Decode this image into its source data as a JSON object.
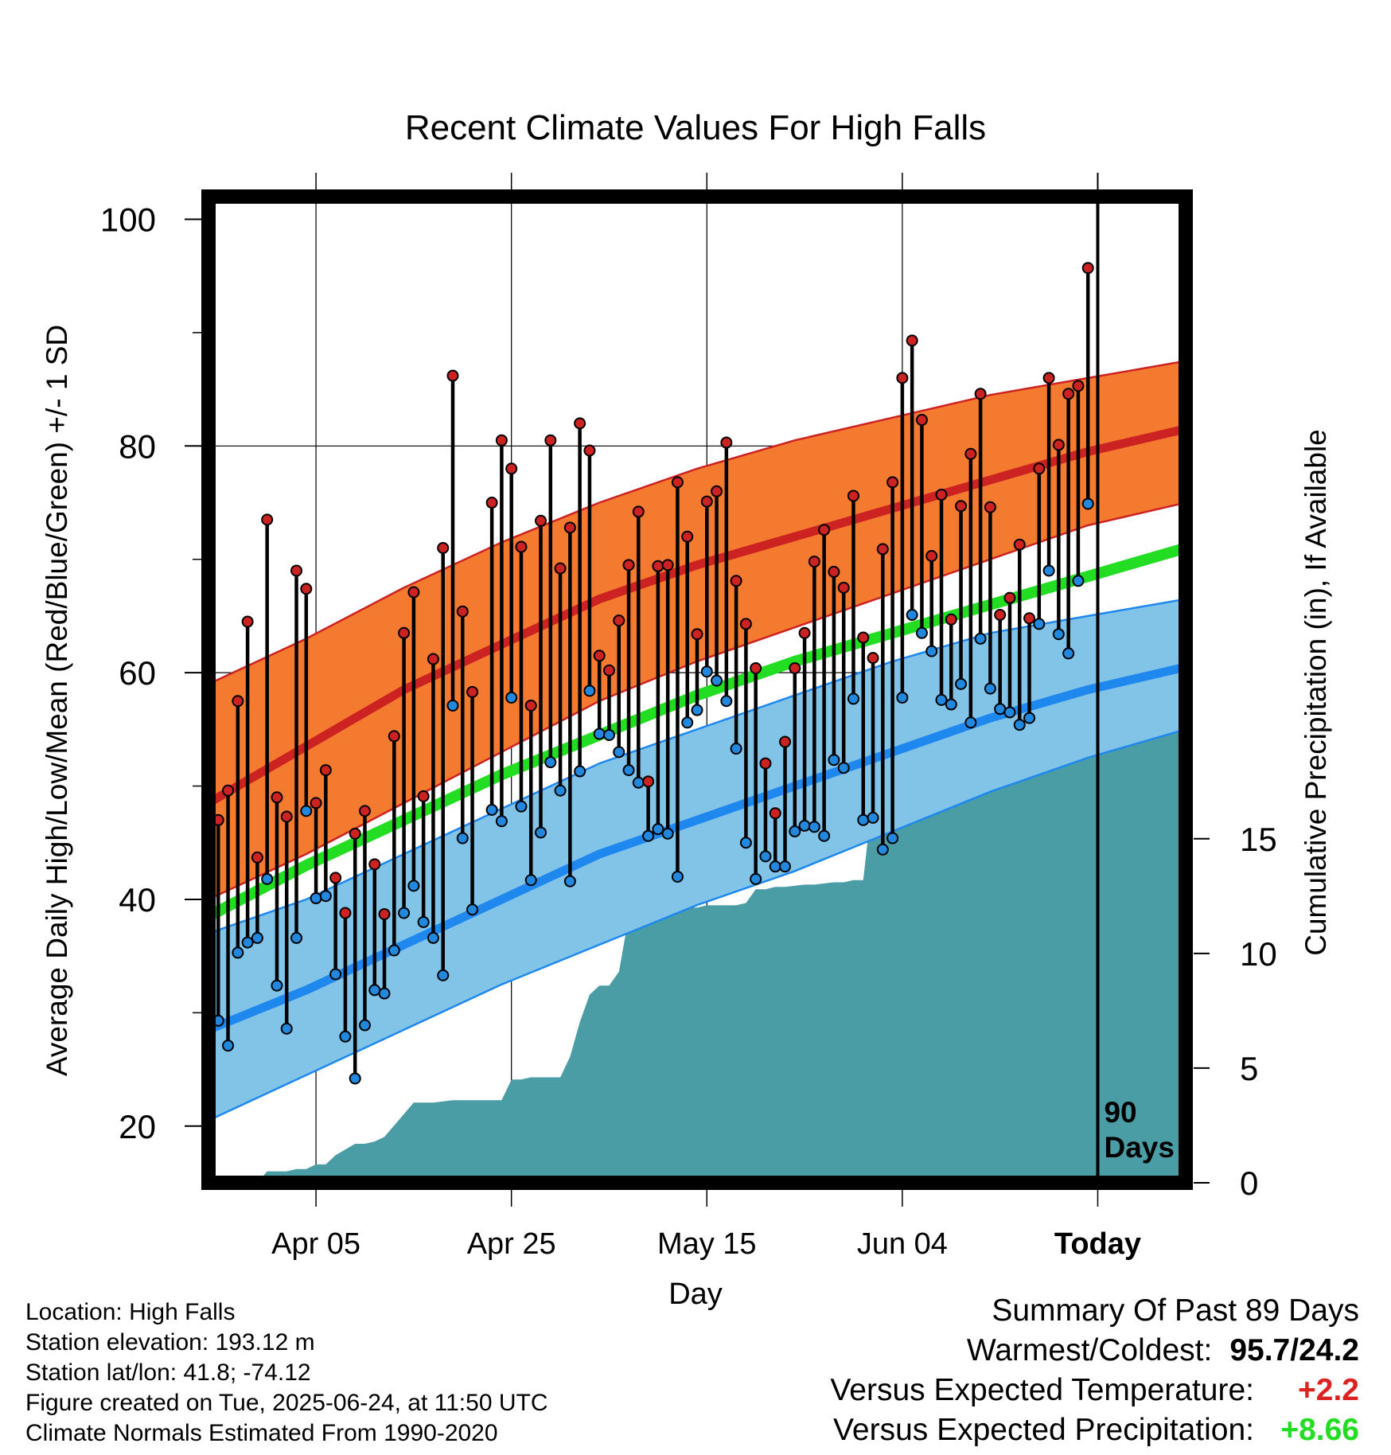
{
  "chart_data": {
    "type": "line",
    "title": "Recent Climate Values For High Falls",
    "xlabel": "Day",
    "ylabel": "Average Daily High/Low/Mean (Red/Blue/Green) +/- 1 SD",
    "y2label": "Cumulative Precipitation (in), If Available",
    "ylim": [
      15,
      102
    ],
    "y2lim": [
      0,
      43
    ],
    "y_ticks": [
      "20",
      "40",
      "60",
      "80",
      "100"
    ],
    "y2_ticks": [
      "0",
      "5",
      "10",
      "15"
    ],
    "x_tick_labels": [
      "Apr 05",
      "Apr 25",
      "May 15",
      "Jun 04",
      "Today"
    ],
    "x_tick_days": [
      10,
      30,
      50,
      70,
      90
    ],
    "xlim": [
      -1,
      99
    ],
    "today_marker": "90\nDays",
    "grid": true,
    "colors": {
      "high": "#cc2222",
      "high_band": "#f47a30",
      "low": "#1e88ee",
      "low_band": "#82c3e8",
      "mean": "#22dd22",
      "precip": "#4a9ca5",
      "high_dot": "#cc2222",
      "low_dot": "#2288dd"
    },
    "normals": {
      "days": [
        -1,
        9,
        19,
        29,
        39,
        49,
        59,
        69,
        79,
        89,
        99
      ],
      "high_mean": [
        48.5,
        53.5,
        58.5,
        62.5,
        66.5,
        69.5,
        72.0,
        74.5,
        77.0,
        79.5,
        81.5
      ],
      "high_sd_upper": [
        59.0,
        63.0,
        67.5,
        71.5,
        75.0,
        78.0,
        80.5,
        82.5,
        84.5,
        86.0,
        87.5
      ],
      "high_sd_lower": [
        40.0,
        44.0,
        48.5,
        53.0,
        57.5,
        61.0,
        64.0,
        67.0,
        70.0,
        73.0,
        75.0
      ],
      "mean": [
        38.5,
        43.0,
        47.0,
        51.0,
        54.5,
        58.0,
        61.0,
        63.5,
        66.0,
        68.5,
        71.0
      ],
      "low_mean": [
        28.5,
        32.0,
        36.0,
        40.0,
        44.0,
        47.0,
        50.0,
        53.0,
        56.0,
        58.5,
        60.5
      ],
      "low_sd_upper": [
        37.0,
        40.0,
        44.0,
        48.0,
        52.0,
        55.0,
        58.0,
        61.0,
        63.5,
        65.0,
        66.5
      ],
      "low_sd_lower": [
        20.5,
        24.5,
        28.5,
        32.5,
        36.0,
        39.5,
        42.5,
        46.0,
        49.5,
        52.5,
        55.0
      ]
    },
    "daily_high": [
      47.0,
      49.6,
      57.5,
      64.5,
      43.7,
      73.5,
      49.0,
      47.3,
      69.0,
      67.4,
      48.5,
      51.4,
      41.9,
      38.8,
      45.8,
      47.8,
      43.1,
      38.7,
      54.4,
      63.5,
      67.1,
      49.1,
      61.2,
      71.0,
      86.2,
      65.4,
      58.3,
      0,
      75.0,
      80.5,
      78.0,
      71.1,
      57.1,
      73.4,
      80.5,
      69.2,
      72.8,
      82.0,
      79.6,
      61.5,
      60.2,
      64.6,
      69.5,
      74.2,
      50.4,
      69.4,
      69.5,
      76.8,
      72.0,
      63.4,
      75.1,
      76.0,
      80.3,
      68.1,
      64.3,
      60.4,
      52.0,
      47.6,
      53.9,
      60.4,
      63.5,
      69.8,
      72.6,
      68.9,
      67.5,
      75.6,
      63.1,
      61.3,
      70.9,
      76.8,
      86.0,
      89.3,
      82.3,
      70.3,
      75.7,
      64.7,
      74.7,
      79.3,
      84.6,
      74.6,
      65.1,
      66.6,
      71.3,
      64.8,
      78.0,
      86.0,
      80.1,
      84.6,
      85.3,
      95.7
    ],
    "daily_low": [
      29.3,
      27.1,
      35.3,
      36.2,
      36.6,
      41.8,
      32.4,
      28.6,
      36.6,
      47.8,
      40.1,
      40.3,
      33.4,
      27.9,
      24.2,
      28.9,
      32.0,
      31.7,
      35.5,
      38.8,
      41.2,
      38.0,
      36.6,
      33.3,
      57.1,
      45.4,
      39.1,
      0,
      47.9,
      46.9,
      57.8,
      48.2,
      41.7,
      45.9,
      52.1,
      49.6,
      41.6,
      51.3,
      58.4,
      54.6,
      54.5,
      53.0,
      51.4,
      50.3,
      45.6,
      46.2,
      45.8,
      42.0,
      55.6,
      56.7,
      60.1,
      59.3,
      57.5,
      53.3,
      45.0,
      41.8,
      43.8,
      42.9,
      42.9,
      46.0,
      46.5,
      46.4,
      45.6,
      52.3,
      51.6,
      57.7,
      47.0,
      47.2,
      44.4,
      45.4,
      57.8,
      65.1,
      63.5,
      61.9,
      57.6,
      57.2,
      59.0,
      55.6,
      63.0,
      58.6,
      56.8,
      56.5,
      55.4,
      56.0,
      64.3,
      69.0,
      63.4,
      61.7,
      68.1,
      74.9
    ],
    "precip": {
      "days": [
        -0.5,
        4,
        5,
        7,
        8,
        9,
        10,
        11,
        12,
        14,
        15,
        16,
        17,
        20,
        21,
        22,
        24,
        25,
        26,
        28,
        29,
        30,
        31,
        32,
        34,
        35,
        36,
        37,
        38,
        39,
        40,
        41,
        42,
        43,
        44,
        45,
        47,
        48,
        49,
        50,
        51,
        53,
        54,
        55,
        56,
        57,
        58,
        60,
        61,
        63,
        64,
        65,
        66,
        67,
        68,
        69,
        70,
        71,
        72,
        73,
        75,
        76,
        77,
        80,
        82,
        83,
        84,
        85,
        86,
        87,
        88,
        89,
        99
      ],
      "values": [
        0,
        0,
        0.5,
        0.5,
        0.6,
        0.6,
        0.8,
        0.8,
        1.2,
        1.7,
        1.7,
        1.8,
        2.0,
        3.5,
        3.5,
        3.5,
        3.6,
        3.6,
        3.6,
        3.6,
        3.6,
        4.5,
        4.5,
        4.6,
        4.6,
        4.6,
        5.5,
        7.0,
        8.2,
        8.6,
        8.6,
        9.2,
        11.6,
        11.6,
        11.6,
        11.6,
        11.8,
        12.0,
        12.0,
        12.1,
        12.1,
        12.1,
        12.2,
        12.8,
        12.8,
        12.9,
        12.9,
        13.0,
        13.0,
        13.1,
        13.1,
        13.2,
        13.2,
        17.0,
        17.0,
        17.0,
        17.0,
        17.0,
        17.0,
        17.5,
        17.8,
        18.0,
        18.0,
        18.0,
        18.5,
        18.6,
        19.0,
        19.4,
        19.6,
        19.6,
        19.8,
        19.9,
        19.9
      ]
    }
  },
  "info": {
    "location": "Location: High Falls",
    "elevation": "Station elevation: 193.12 m",
    "latlon": "Station lat/lon: 41.8; -74.12",
    "created": "Figure created on Tue, 2025-06-24, at 11:50 UTC",
    "normals": "Climate Normals Estimated From 1990-2020"
  },
  "summary": {
    "heading": "Summary Of Past 89 Days",
    "warm_cold_label": "Warmest/Coldest:",
    "warm_cold_value": "95.7/24.2",
    "temp_label": "Versus Expected Temperature:",
    "temp_value": "+2.2",
    "temp_color": "#dd2222",
    "precip_label": "Versus Expected Precipitation:",
    "precip_value": "+8.66",
    "precip_color": "#22dd22"
  }
}
